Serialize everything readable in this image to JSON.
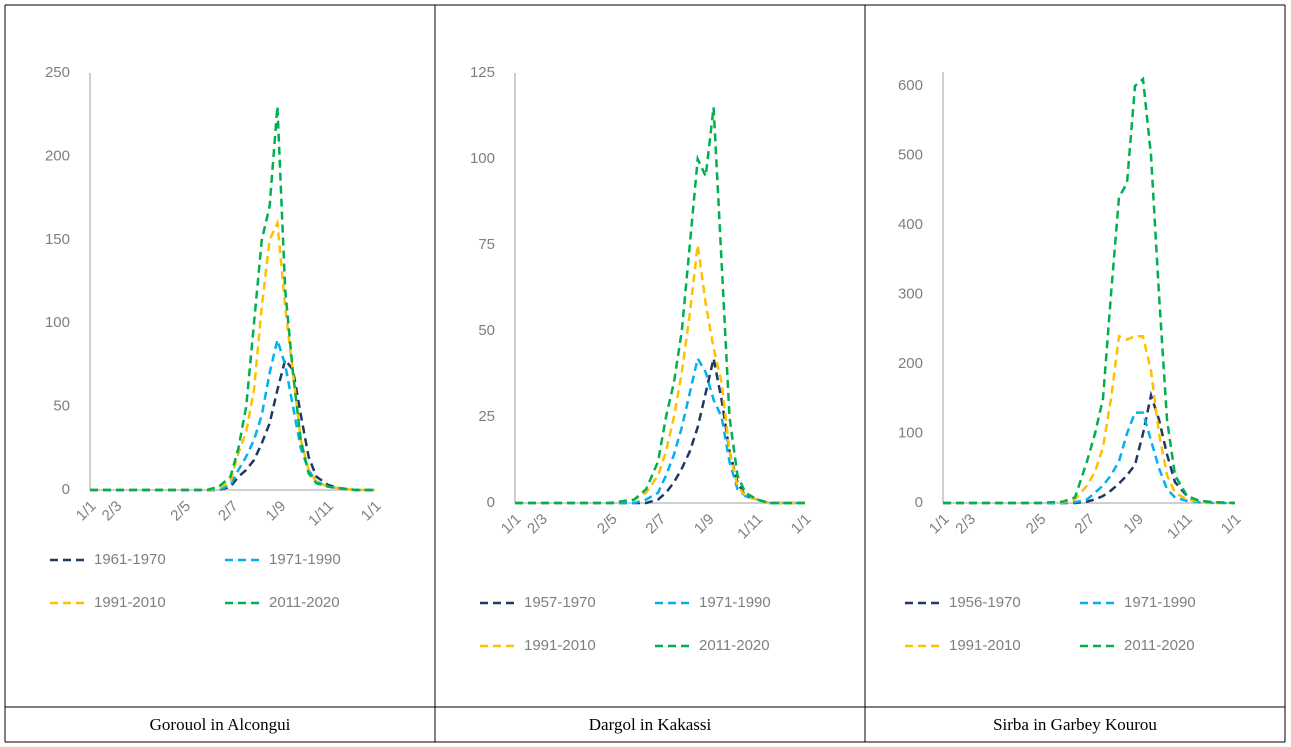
{
  "chart_data": [
    {
      "type": "line",
      "title": "Gorouol in Alcongui",
      "x": [
        0,
        30,
        60,
        90,
        120,
        150,
        165,
        180,
        190,
        200,
        210,
        220,
        230,
        240,
        250,
        260,
        270,
        280,
        290,
        305,
        320,
        340,
        365
      ],
      "xlim": [
        0,
        365
      ],
      "xticks": [
        {
          "value": 0,
          "label": "1/1"
        },
        {
          "value": 33,
          "label": "2/3"
        },
        {
          "value": 121,
          "label": "2/5"
        },
        {
          "value": 182,
          "label": "2/7"
        },
        {
          "value": 243,
          "label": "1/9"
        },
        {
          "value": 304,
          "label": "1/11"
        },
        {
          "value": 365,
          "label": "1/1"
        }
      ],
      "ylim": [
        0,
        250
      ],
      "yticks": [
        0,
        50,
        100,
        150,
        200,
        250
      ],
      "series": [
        {
          "name": "1961-1970",
          "color": "#1f3864",
          "values": [
            0,
            0,
            0,
            0,
            0,
            0,
            0,
            2,
            8,
            12,
            18,
            28,
            40,
            60,
            78,
            72,
            45,
            20,
            8,
            3,
            1,
            0,
            0
          ]
        },
        {
          "name": "1971-1990",
          "color": "#00b0f0",
          "values": [
            0,
            0,
            0,
            0,
            0,
            0,
            0,
            3,
            12,
            20,
            30,
            45,
            70,
            90,
            75,
            50,
            25,
            12,
            5,
            2,
            1,
            0,
            0
          ]
        },
        {
          "name": "1991-2010",
          "color": "#ffc000",
          "values": [
            0,
            0,
            0,
            0,
            0,
            0,
            1,
            5,
            22,
            35,
            60,
            110,
            150,
            160,
            110,
            70,
            30,
            12,
            5,
            2,
            1,
            0,
            0
          ]
        },
        {
          "name": "2011-2020",
          "color": "#00b050",
          "values": [
            0,
            0,
            0,
            0,
            0,
            0,
            2,
            8,
            25,
            50,
            100,
            150,
            170,
            230,
            120,
            70,
            30,
            10,
            4,
            2,
            1,
            0,
            0
          ]
        }
      ]
    },
    {
      "type": "line",
      "title": "Dargol in Kakassi",
      "x": [
        0,
        30,
        60,
        90,
        120,
        150,
        165,
        180,
        190,
        200,
        210,
        220,
        230,
        240,
        250,
        260,
        270,
        280,
        290,
        305,
        320,
        340,
        365
      ],
      "xlim": [
        0,
        365
      ],
      "xticks": [
        {
          "value": 0,
          "label": "1/1"
        },
        {
          "value": 33,
          "label": "2/3"
        },
        {
          "value": 121,
          "label": "2/5"
        },
        {
          "value": 182,
          "label": "2/7"
        },
        {
          "value": 243,
          "label": "1/9"
        },
        {
          "value": 304,
          "label": "1/11"
        },
        {
          "value": 365,
          "label": "1/1"
        }
      ],
      "ylim": [
        0,
        125
      ],
      "yticks": [
        0,
        25,
        50,
        75,
        100,
        125
      ],
      "series": [
        {
          "name": "1957-1970",
          "color": "#1f3864",
          "values": [
            0,
            0,
            0,
            0,
            0,
            0,
            0,
            1,
            3,
            6,
            10,
            15,
            22,
            32,
            42,
            30,
            15,
            6,
            2,
            1,
            0,
            0,
            0
          ]
        },
        {
          "name": "1971-1990",
          "color": "#00b0f0",
          "values": [
            0,
            0,
            0,
            0,
            0,
            0,
            1,
            3,
            8,
            14,
            22,
            32,
            42,
            38,
            30,
            25,
            12,
            4,
            2,
            1,
            0,
            0,
            0
          ]
        },
        {
          "name": "1991-2010",
          "color": "#ffc000",
          "values": [
            0,
            0,
            0,
            0,
            0,
            1,
            3,
            8,
            15,
            25,
            38,
            55,
            75,
            58,
            45,
            35,
            15,
            5,
            2,
            1,
            0,
            0,
            0
          ]
        },
        {
          "name": "2011-2020",
          "color": "#00b050",
          "values": [
            0,
            0,
            0,
            0,
            0,
            1,
            4,
            12,
            25,
            35,
            50,
            75,
            100,
            95,
            115,
            70,
            25,
            8,
            3,
            1,
            0,
            0,
            0
          ]
        }
      ]
    },
    {
      "type": "line",
      "title": "Sirba in Garbey Kourou",
      "x": [
        0,
        30,
        60,
        90,
        120,
        150,
        165,
        180,
        190,
        200,
        210,
        220,
        230,
        240,
        250,
        260,
        270,
        280,
        290,
        305,
        320,
        340,
        365
      ],
      "xlim": [
        0,
        365
      ],
      "xticks": [
        {
          "value": 0,
          "label": "1/1"
        },
        {
          "value": 33,
          "label": "2/3"
        },
        {
          "value": 121,
          "label": "2/5"
        },
        {
          "value": 182,
          "label": "2/7"
        },
        {
          "value": 243,
          "label": "1/9"
        },
        {
          "value": 304,
          "label": "1/11"
        },
        {
          "value": 365,
          "label": "1/1"
        }
      ],
      "ylim": [
        0,
        620
      ],
      "yticks": [
        0,
        100,
        200,
        300,
        400,
        500,
        600
      ],
      "series": [
        {
          "name": "1956-1970",
          "color": "#1f3864",
          "values": [
            0,
            0,
            0,
            0,
            0,
            0,
            0,
            2,
            5,
            10,
            18,
            28,
            40,
            55,
            100,
            155,
            120,
            70,
            30,
            10,
            3,
            1,
            0
          ]
        },
        {
          "name": "1971-1990",
          "color": "#00b0f0",
          "values": [
            0,
            0,
            0,
            0,
            0,
            0,
            1,
            5,
            15,
            25,
            40,
            60,
            100,
            130,
            130,
            90,
            50,
            20,
            8,
            3,
            1,
            0,
            0
          ]
        },
        {
          "name": "1991-2010",
          "color": "#ffc000",
          "values": [
            0,
            0,
            0,
            0,
            0,
            1,
            5,
            25,
            45,
            80,
            150,
            240,
            235,
            240,
            240,
            190,
            100,
            40,
            15,
            5,
            2,
            0,
            0
          ]
        },
        {
          "name": "2011-2020",
          "color": "#00b050",
          "values": [
            0,
            0,
            0,
            0,
            0,
            2,
            8,
            60,
            100,
            150,
            300,
            440,
            460,
            600,
            610,
            500,
            300,
            120,
            40,
            10,
            3,
            1,
            0
          ]
        }
      ]
    }
  ]
}
